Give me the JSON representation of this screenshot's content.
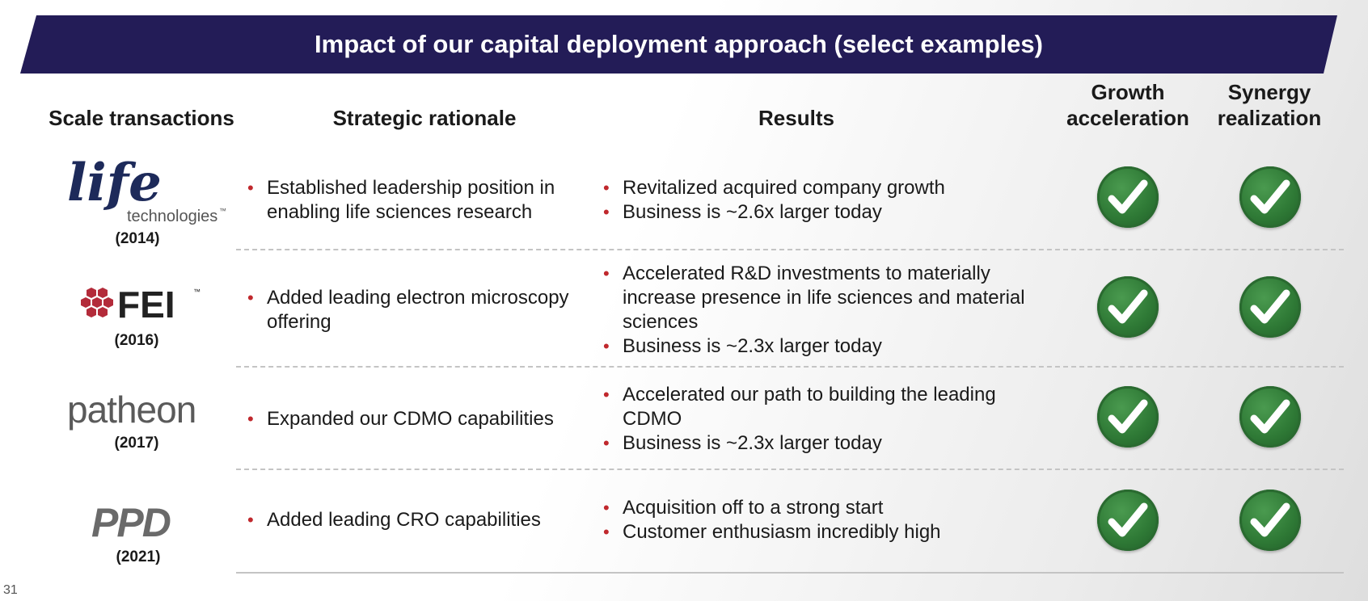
{
  "header": {
    "title": "Impact of our capital deployment approach (select examples)"
  },
  "columns": {
    "scale": "Scale transactions",
    "rationale": "Strategic rationale",
    "results": "Results",
    "growth_line1": "Growth",
    "growth_line2": "acceleration",
    "synergy_line1": "Synergy",
    "synergy_line2": "realization"
  },
  "rows": [
    {
      "logo": {
        "word": "life",
        "sub": "technologies",
        "tm": "™"
      },
      "year": "(2014)",
      "rationale": [
        "Established leadership position in enabling life sciences research"
      ],
      "results": [
        "Revitalized acquired company growth",
        "Business is ~2.6x larger today"
      ],
      "growth_icon": "check-circle-icon",
      "synergy_icon": "check-circle-icon"
    },
    {
      "logo": {
        "word": "FEI",
        "tm": "™"
      },
      "year": "(2016)",
      "rationale": [
        "Added leading electron microscopy offering"
      ],
      "results": [
        "Accelerated R&D investments to materially increase presence in life sciences and material sciences",
        "Business is ~2.3x larger today"
      ],
      "growth_icon": "check-circle-icon",
      "synergy_icon": "check-circle-icon"
    },
    {
      "logo": {
        "word": "patheon"
      },
      "year": "(2017)",
      "rationale": [
        "Expanded our CDMO capabilities"
      ],
      "results": [
        "Accelerated our path to building the leading CDMO",
        "Business is ~2.3x larger today"
      ],
      "growth_icon": "check-circle-icon",
      "synergy_icon": "check-circle-icon"
    },
    {
      "logo": {
        "word": "PPD"
      },
      "year": "(2021)",
      "rationale": [
        "Added leading CRO capabilities"
      ],
      "results": [
        "Acquisition off to a strong start",
        "Customer enthusiasm incredibly high"
      ],
      "growth_icon": "check-circle-icon",
      "synergy_icon": "check-circle-icon"
    }
  ],
  "footer": {
    "page_number": "31"
  },
  "colors": {
    "banner": "#231c57",
    "bullet": "#c0282d",
    "check": "#2f7a36"
  }
}
